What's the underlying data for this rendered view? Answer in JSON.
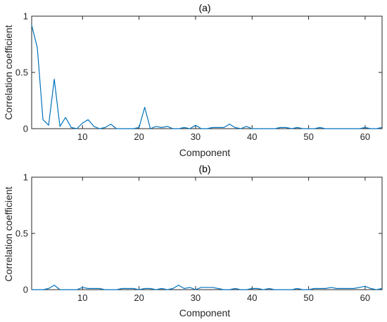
{
  "chart_data": [
    {
      "type": "line",
      "title": "(a)",
      "xlabel": "Component",
      "ylabel": "Correlation coefficient",
      "xlim": [
        1,
        63
      ],
      "ylim": [
        0,
        1
      ],
      "xticks": [
        10,
        20,
        30,
        40,
        50,
        60
      ],
      "yticks": [
        0,
        0.5,
        1
      ],
      "ytick_labels": [
        "0",
        "0.5",
        "1"
      ],
      "grid": false,
      "color": "#0072BD",
      "series": [
        {
          "x": [
            1,
            2,
            3,
            4,
            5,
            6,
            7,
            8,
            9,
            10,
            11,
            12,
            13,
            14,
            15,
            16,
            17,
            18,
            19,
            20,
            21,
            22,
            23,
            24,
            25,
            26,
            27,
            28,
            29,
            30,
            31,
            32,
            33,
            34,
            35,
            36,
            37,
            38,
            39,
            40,
            41,
            42,
            43,
            44,
            45,
            46,
            47,
            48,
            49,
            50,
            51,
            52,
            53,
            54,
            55,
            56,
            57,
            58,
            59,
            60,
            61,
            62,
            63
          ],
          "values": [
            0.92,
            0.72,
            0.08,
            0.03,
            0.44,
            0.02,
            0.1,
            0.01,
            0.0,
            0.05,
            0.08,
            0.02,
            0.0,
            0.01,
            0.04,
            0.0,
            0.0,
            0.0,
            0.0,
            0.01,
            0.19,
            0.0,
            0.02,
            0.01,
            0.02,
            0.0,
            0.0,
            0.01,
            0.0,
            0.03,
            0.0,
            0.0,
            0.01,
            0.01,
            0.01,
            0.04,
            0.01,
            0.0,
            0.02,
            0.0,
            0.0,
            0.0,
            0.0,
            0.0,
            0.01,
            0.01,
            0.0,
            0.01,
            0.0,
            0.0,
            0.0,
            0.01,
            0.0,
            0.0,
            0.0,
            0.0,
            0.0,
            0.0,
            0.0,
            0.01,
            0.0,
            0.0,
            0.01
          ]
        }
      ]
    },
    {
      "type": "line",
      "title": "(b)",
      "xlabel": "Component",
      "ylabel": "Correlation coefficient",
      "xlim": [
        1,
        63
      ],
      "ylim": [
        0,
        1
      ],
      "xticks": [
        10,
        20,
        30,
        40,
        50,
        60
      ],
      "yticks": [
        0,
        0.5,
        1
      ],
      "ytick_labels": [
        "0",
        "0.5",
        "1"
      ],
      "grid": false,
      "color": "#0072BD",
      "series": [
        {
          "x": [
            1,
            2,
            3,
            4,
            5,
            6,
            7,
            8,
            9,
            10,
            11,
            12,
            13,
            14,
            15,
            16,
            17,
            18,
            19,
            20,
            21,
            22,
            23,
            24,
            25,
            26,
            27,
            28,
            29,
            30,
            31,
            32,
            33,
            34,
            35,
            36,
            37,
            38,
            39,
            40,
            41,
            42,
            43,
            44,
            45,
            46,
            47,
            48,
            49,
            50,
            51,
            52,
            53,
            54,
            55,
            56,
            57,
            58,
            59,
            60,
            61,
            62,
            63
          ],
          "values": [
            0.0,
            0.0,
            0.0,
            0.01,
            0.04,
            0.0,
            0.0,
            0.0,
            0.0,
            0.02,
            0.01,
            0.01,
            0.01,
            0.0,
            0.0,
            0.0,
            0.01,
            0.01,
            0.01,
            0.0,
            0.01,
            0.01,
            0.0,
            0.01,
            0.0,
            0.01,
            0.04,
            0.01,
            0.02,
            0.0,
            0.02,
            0.02,
            0.02,
            0.01,
            0.0,
            0.0,
            0.01,
            0.0,
            0.0,
            0.01,
            0.01,
            0.0,
            0.01,
            0.0,
            0.0,
            0.0,
            0.0,
            0.01,
            0.0,
            0.0,
            0.01,
            0.01,
            0.01,
            0.02,
            0.01,
            0.01,
            0.01,
            0.01,
            0.02,
            0.03,
            0.01,
            0.0,
            0.01
          ]
        }
      ]
    }
  ]
}
